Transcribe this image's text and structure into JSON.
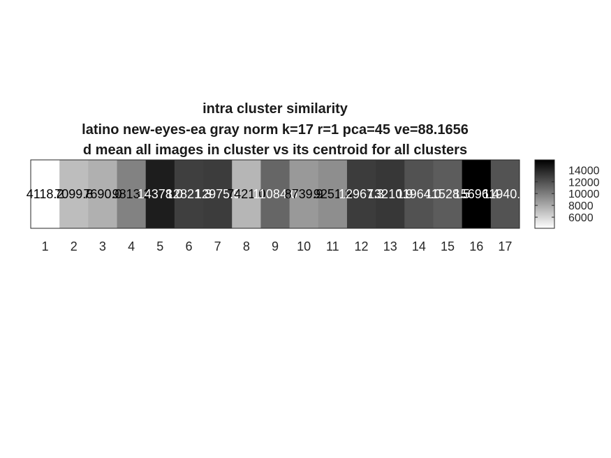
{
  "chart_data": {
    "type": "heatmap",
    "title": [
      "intra cluster similarity",
      "latino new-eyes-ea gray norm k=17 r=1 pca=45 ve=88.1656",
      "d mean all images in cluster vs its centroid for all clusters"
    ],
    "x": [
      "1",
      "2",
      "3",
      "4",
      "5",
      "6",
      "7",
      "8",
      "9",
      "10",
      "11",
      "12",
      "13",
      "14",
      "15",
      "16",
      "17"
    ],
    "values": [
      4118.2,
      7099.8,
      7690.0,
      9813.2,
      14378.0,
      12821.3,
      12975.9,
      7421.0,
      11084.0,
      8739.9,
      9251.3,
      12967.3,
      13210.9,
      11964.0,
      11528.5,
      15696.4,
      11940.9
    ],
    "cell_labels": [
      "4118.2",
      "7099.8",
      "7690.0",
      "9813.2",
      "14378.0",
      "12821.3",
      "12975.9",
      "7421.0",
      "11084.0",
      "8739.9",
      "9251.3",
      "12967.3",
      "13210.9",
      "11964.0",
      "11528.5",
      "15696.4",
      "11940.9"
    ],
    "color_scale": {
      "low": "#ffffff",
      "high": "#000000",
      "clim": [
        4118.2,
        15696.4
      ]
    },
    "colorbar": {
      "ticks": [
        6000,
        8000,
        10000,
        12000,
        14000
      ],
      "tick_labels": [
        "6000",
        "8000",
        "10000",
        "12000",
        "14000"
      ]
    },
    "grid": false
  }
}
